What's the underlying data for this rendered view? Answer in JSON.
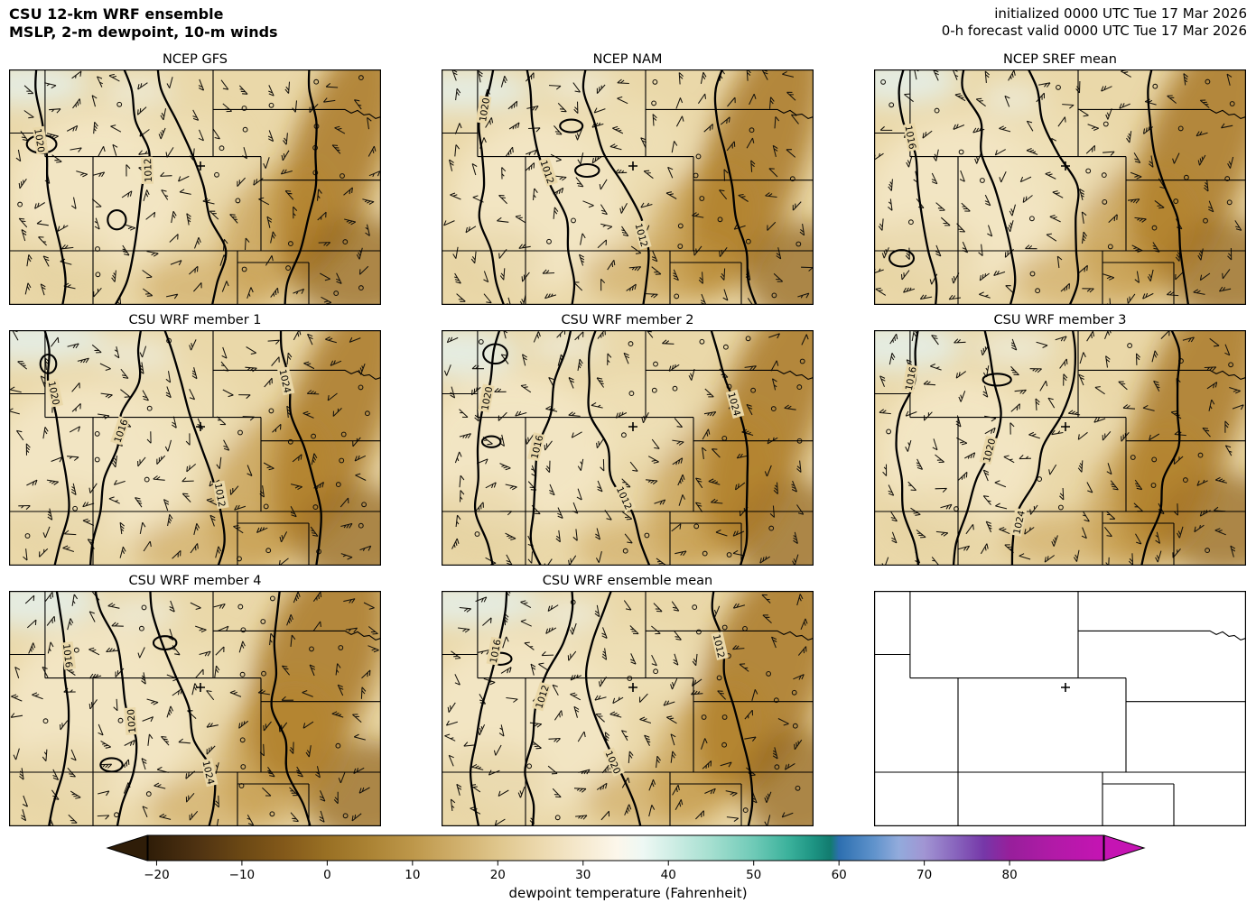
{
  "header": {
    "title_line1": "CSU 12-km WRF ensemble",
    "title_line2": "MSLP, 2-m dewpoint, 10-m winds",
    "init_line": "initialized 0000 UTC Tue 17 Mar 2026",
    "valid_line": "0-h forecast valid 0000 UTC Tue 17 Mar 2026"
  },
  "panels": [
    {
      "title": "NCEP GFS",
      "isobar_labels": [
        "1020",
        "1012"
      ]
    },
    {
      "title": "NCEP NAM",
      "isobar_labels": [
        "1020",
        "1012",
        "1012"
      ]
    },
    {
      "title": "NCEP SREF mean",
      "isobar_labels": [
        "1016"
      ]
    },
    {
      "title": "CSU WRF member 1",
      "isobar_labels": [
        "1020",
        "1016",
        "1012",
        "1024"
      ]
    },
    {
      "title": "CSU WRF member 2",
      "isobar_labels": [
        "1020",
        "1016",
        "1012",
        "1024"
      ]
    },
    {
      "title": "CSU WRF member 3",
      "isobar_labels": [
        "1016",
        "1020",
        "1024"
      ]
    },
    {
      "title": "CSU WRF member 4",
      "isobar_labels": [
        "1016",
        "1020",
        "1024"
      ]
    },
    {
      "title": "CSU WRF ensemble mean",
      "isobar_labels": [
        "1016",
        "1012",
        "1020",
        "1012"
      ]
    },
    {
      "title": "",
      "isobar_labels": []
    }
  ],
  "colorbar": {
    "label": "dewpoint temperature (Fahrenheit)",
    "tick_labels": [
      "−20",
      "−10",
      "0",
      "10",
      "20",
      "30",
      "40",
      "50",
      "60",
      "70",
      "80"
    ]
  },
  "chart_data": {
    "type": "heatmap",
    "title": "CSU 12-km WRF ensemble",
    "subtitle": "MSLP, 2-m dewpoint, 10-m winds",
    "initialized": "0000 UTC Tue 17 Mar 2026",
    "forecast": "0-h forecast valid 0000 UTC Tue 17 Mar 2026",
    "panel_titles": [
      "NCEP GFS",
      "NCEP NAM",
      "NCEP SREF mean",
      "CSU WRF member 1",
      "CSU WRF member 2",
      "CSU WRF member 3",
      "CSU WRF member 4",
      "CSU WRF ensemble mean"
    ],
    "layout": "3x3 panel grid; ninth panel blank state-border outline with + marker",
    "fields": [
      "mean sea-level pressure contours (hPa)",
      "2-m dewpoint temperature shaded (F)",
      "10-m wind barbs"
    ],
    "isobar_values_hPa": [
      1012,
      1016,
      1020,
      1024
    ],
    "marker": "+ near north-central Colorado in every panel",
    "colorbar": {
      "label": "dewpoint temperature (Fahrenheit)",
      "tick_values": [
        -20,
        -10,
        0,
        10,
        20,
        30,
        40,
        50,
        60,
        70,
        80
      ],
      "value_range": [
        -21,
        91
      ],
      "extend": "both",
      "stops": [
        [
          -21,
          "#2f1d08"
        ],
        [
          -15,
          "#503312"
        ],
        [
          -10,
          "#6b4814"
        ],
        [
          -5,
          "#83591a"
        ],
        [
          0,
          "#997024"
        ],
        [
          5,
          "#ab8334"
        ],
        [
          10,
          "#bd974a"
        ],
        [
          15,
          "#cfae6a"
        ],
        [
          20,
          "#dfc68c"
        ],
        [
          25,
          "#ecd9ae"
        ],
        [
          30,
          "#f6ead0"
        ],
        [
          34,
          "#fcf7eb"
        ],
        [
          37,
          "#eef8f4"
        ],
        [
          40,
          "#d3efe7"
        ],
        [
          45,
          "#a5dfd0"
        ],
        [
          50,
          "#6fcab7"
        ],
        [
          54,
          "#3cb29c"
        ],
        [
          57,
          "#1d9483"
        ],
        [
          59,
          "#127b6f"
        ],
        [
          60,
          "#2d6fb0"
        ],
        [
          64,
          "#5e92cb"
        ],
        [
          67,
          "#92abdc"
        ],
        [
          70,
          "#a195d3"
        ],
        [
          74,
          "#8660bb"
        ],
        [
          77,
          "#7637a8"
        ],
        [
          80,
          "#971f9b"
        ],
        [
          85,
          "#b11aa7"
        ],
        [
          91,
          "#c514b3"
        ]
      ]
    }
  }
}
